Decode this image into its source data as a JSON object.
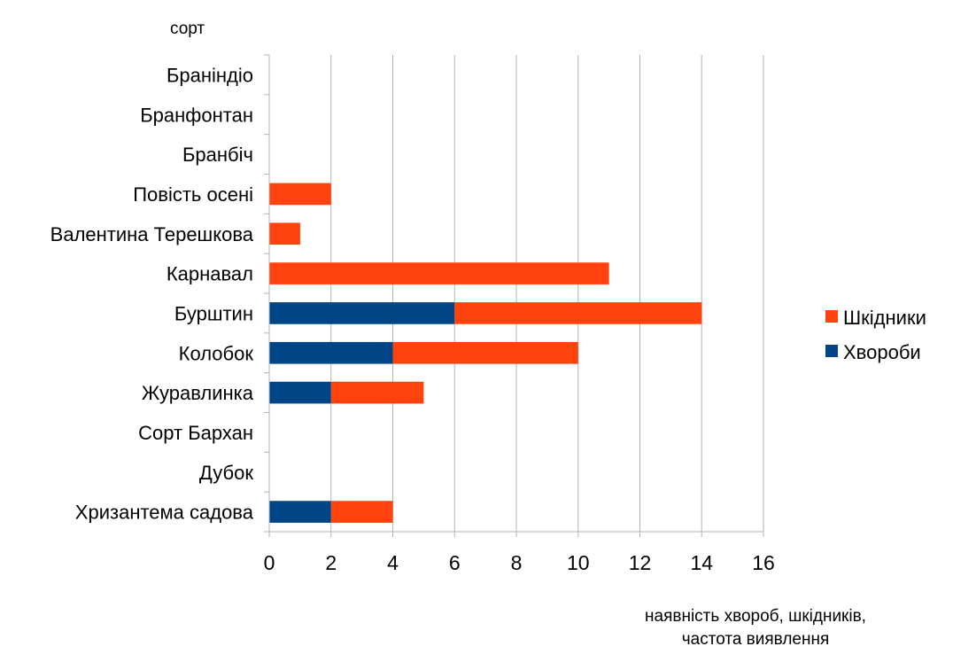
{
  "chart_data": {
    "type": "bar",
    "orientation": "horizontal",
    "stacked": true,
    "title": "",
    "ylabel": "сорт",
    "xlabel_lines": [
      "наявність хвороб, шкідників,",
      "частота виявлення"
    ],
    "categories": [
      "Браніндіо",
      "Бранфонтан",
      "Бранбіч",
      "Повість осені",
      "Валентина Терешкова",
      "Карнавал",
      "Бурштин",
      "Колобок",
      "Журавлинка",
      "Сорт Бархан",
      "Дубок",
      "Хризантема садова"
    ],
    "series": [
      {
        "name": "Хвороби",
        "color": "#004586",
        "values": [
          0,
          0,
          0,
          0,
          0,
          0,
          6,
          4,
          2,
          0,
          0,
          2
        ]
      },
      {
        "name": "Шкідники",
        "color": "#ff420e",
        "values": [
          0,
          0,
          0,
          2,
          1,
          11,
          8,
          6,
          3,
          0,
          0,
          2
        ]
      }
    ],
    "xlim": [
      0,
      16
    ],
    "xticks": [
      0,
      2,
      4,
      6,
      8,
      10,
      12,
      14,
      16
    ],
    "grid": "vertical",
    "legend": {
      "position": "right",
      "order": [
        "Шкідники",
        "Хвороби"
      ]
    }
  }
}
